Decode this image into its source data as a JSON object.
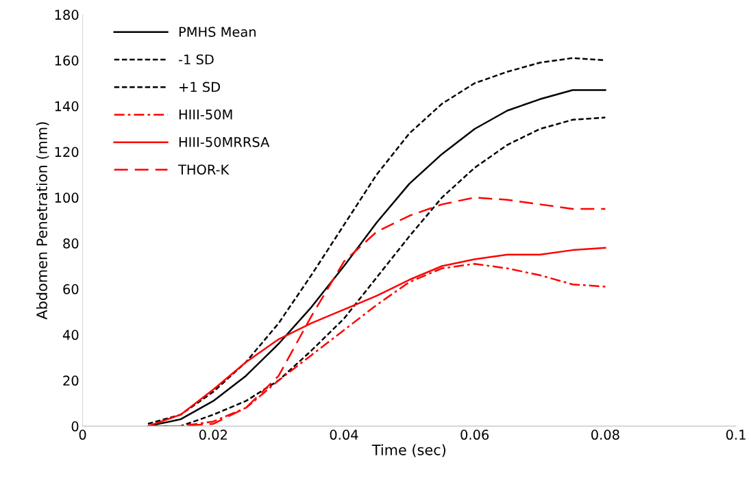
{
  "chart_data": {
    "type": "line",
    "xlabel": "Time (sec)",
    "ylabel": "Abdomen Penetration (mm)",
    "x": [
      0.01,
      0.015,
      0.02,
      0.025,
      0.03,
      0.035,
      0.04,
      0.045,
      0.05,
      0.055,
      0.06,
      0.065,
      0.07,
      0.075,
      0.08
    ],
    "xlim": [
      0,
      0.1
    ],
    "xticks": [
      0,
      0.02,
      0.04,
      0.06,
      0.08,
      0.1
    ],
    "ylim": [
      0,
      180
    ],
    "yticks": [
      0,
      20,
      40,
      60,
      80,
      100,
      120,
      140,
      160,
      180
    ],
    "grid": false,
    "legend": "top left",
    "marker": "none",
    "series": [
      {
        "name": "PMHS Mean",
        "color": "#000000",
        "line_style": "solid",
        "values": [
          0,
          3,
          11,
          22,
          36,
          52,
          70,
          89,
          106,
          119,
          130,
          138,
          143,
          147,
          147
        ]
      },
      {
        "name": "-1 SD",
        "color": "#000000",
        "line_style": "dotted",
        "values": [
          1,
          5,
          15,
          28,
          45,
          66,
          88,
          110,
          128,
          141,
          150,
          155,
          159,
          161,
          160
        ]
      },
      {
        "name": "+1 SD",
        "color": "#000000",
        "line_style": "dotted",
        "values": [
          0,
          0,
          5,
          11,
          20,
          33,
          47,
          65,
          83,
          100,
          113,
          123,
          130,
          134,
          135
        ]
      },
      {
        "name": "HIII-50M",
        "color": "#ff0000",
        "line_style": "dashdot",
        "values": [
          0,
          0,
          2,
          8,
          20,
          31,
          42,
          53,
          63,
          69,
          71,
          69,
          66,
          62,
          61
        ]
      },
      {
        "name": "HIII-50MRRSA",
        "color": "#ff0000",
        "line_style": "solid",
        "values": [
          0,
          5,
          16,
          28,
          38,
          45,
          51,
          57,
          64,
          70,
          73,
          75,
          75,
          77,
          78
        ]
      },
      {
        "name": "THOR-K",
        "color": "#ff0000",
        "line_style": "dashed",
        "values": [
          0,
          0,
          1,
          8,
          22,
          48,
          72,
          85,
          92,
          97,
          100,
          99,
          97,
          95,
          95
        ]
      }
    ]
  }
}
